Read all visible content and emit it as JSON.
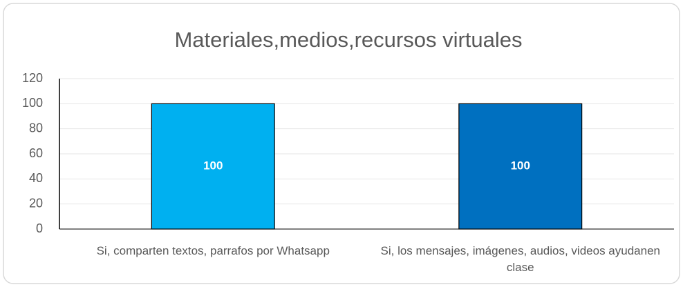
{
  "chart_data": {
    "type": "bar",
    "title": "Materiales,medios,recursos virtuales",
    "categories": [
      "Si, comparten textos, parrafos por Whatsapp",
      "Si, los mensajes, imágenes, audios, videos ayudanen clase"
    ],
    "values": [
      100,
      100
    ],
    "colors": [
      "#00b0f0",
      "#0070c0"
    ],
    "ylim": [
      0,
      120
    ],
    "yticks": [
      0,
      20,
      40,
      60,
      80,
      100,
      120
    ],
    "grid": true
  }
}
